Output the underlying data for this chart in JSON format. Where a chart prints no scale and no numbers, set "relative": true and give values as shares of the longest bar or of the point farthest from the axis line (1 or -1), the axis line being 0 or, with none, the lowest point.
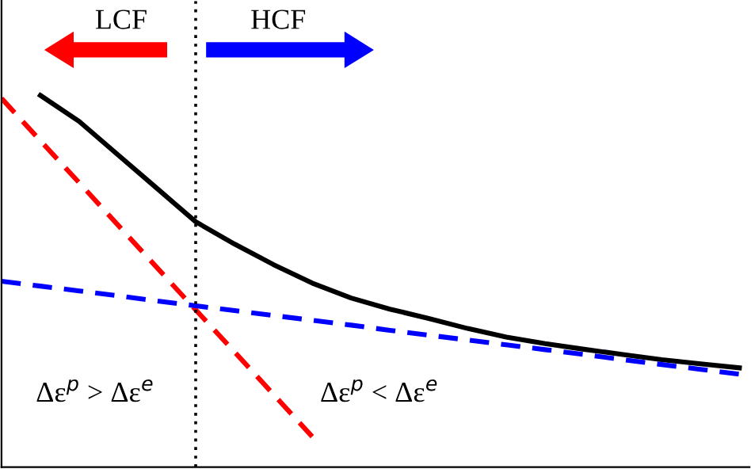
{
  "chart_data": {
    "type": "line",
    "relative": true,
    "legend": false,
    "marker": "none",
    "categories": [
      null,
      null,
      null,
      null,
      null,
      null,
      null,
      null,
      null,
      null,
      null,
      null,
      null,
      null,
      null,
      null,
      null,
      null,
      null,
      null
    ],
    "series": [
      {
        "color": "#000000",
        "line_style": "solid",
        "values": [
          null,
          1.0,
          0.93,
          0.84,
          0.75,
          0.66,
          0.6,
          0.545,
          0.495,
          0.455,
          0.425,
          0.4,
          0.373,
          0.35,
          0.332,
          0.317,
          0.303,
          0.289,
          0.278,
          0.267
        ]
      },
      {
        "color": "#ff0000",
        "line_style": "dashed",
        "values": [
          0.992,
          0.878,
          0.765,
          0.651,
          0.537,
          0.423,
          0.31,
          0.196,
          0.082,
          null,
          null,
          null,
          null,
          null,
          null,
          null,
          null,
          null,
          null,
          null
        ]
      },
      {
        "color": "#0000ff",
        "line_style": "dashed",
        "values": [
          0.5,
          0.487,
          0.474,
          0.461,
          0.447,
          0.434,
          0.421,
          0.408,
          0.395,
          0.382,
          0.368,
          0.355,
          0.342,
          0.329,
          0.316,
          0.303,
          0.289,
          0.276,
          0.263,
          0.25
        ]
      }
    ],
    "annotations": [
      "LCF",
      "HCF",
      "Δε$^{p}$ > Δε$^{e}$",
      "Δε$^{p}$ < Δε$^{e}$"
    ]
  }
}
